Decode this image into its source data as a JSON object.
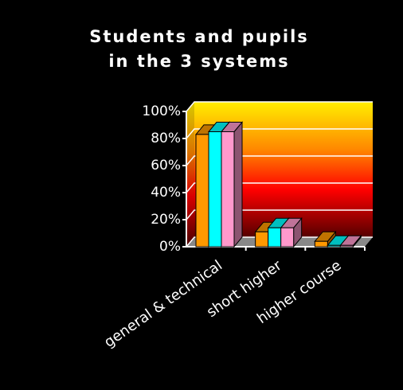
{
  "chart_data": {
    "type": "bar3d",
    "title": [
      "Students and pupils",
      "in the 3 systems"
    ],
    "categories": [
      "general & technical",
      "short higher",
      "higher course"
    ],
    "series": [
      {
        "color": "#ff9900",
        "values": [
          83,
          11,
          4
        ]
      },
      {
        "color": "#00ffff",
        "values": [
          85,
          14,
          1
        ]
      },
      {
        "color": "#ff99cc",
        "values": [
          85,
          14,
          1
        ]
      }
    ],
    "ylim": [
      0,
      100
    ],
    "yticks": [
      {
        "value": 0,
        "label": "0%"
      },
      {
        "value": 20,
        "label": "20%"
      },
      {
        "value": 40,
        "label": "40%"
      },
      {
        "value": 60,
        "label": "60%"
      },
      {
        "value": 80,
        "label": "80%"
      },
      {
        "value": 100,
        "label": "100%"
      }
    ],
    "grid": true
  }
}
